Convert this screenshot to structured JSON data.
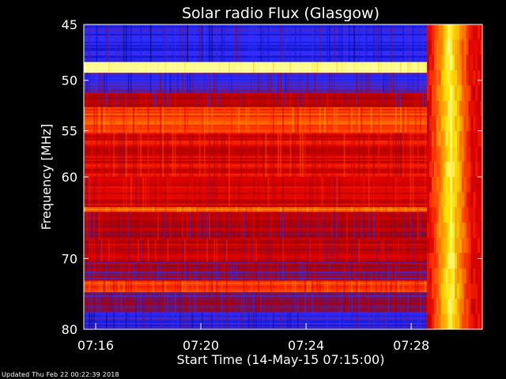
{
  "chart_data": {
    "type": "heatmap",
    "title": "Solar radio Flux (Glasgow)",
    "xlabel": "Start Time (14-May-15 07:15:00)",
    "ylabel": "Frequency [MHz]",
    "x_unit": "minutes after 07:15",
    "xlim": [
      0.55,
      15.7
    ],
    "ylim": [
      80,
      45
    ],
    "y_scale": "log",
    "x_ticks": [
      {
        "label": "07:16",
        "value": 1
      },
      {
        "label": "07:20",
        "value": 5
      },
      {
        "label": "07:24",
        "value": 9
      },
      {
        "label": "07:28",
        "value": 13
      }
    ],
    "y_ticks": [
      {
        "label": "45",
        "value": 45
      },
      {
        "label": "50",
        "value": 50
      },
      {
        "label": "55",
        "value": 55
      },
      {
        "label": "60",
        "value": 60
      },
      {
        "label": "70",
        "value": 70
      },
      {
        "label": "80",
        "value": 80
      }
    ],
    "colormap": [
      "#000000",
      "#1010c8",
      "#3030ff",
      "#a00000",
      "#e00000",
      "#ff4000",
      "#ff9000",
      "#ffe000",
      "#ffffa0"
    ],
    "bands": [
      {
        "f_start": 45,
        "f_end": 48.3,
        "level": 0.2
      },
      {
        "f_start": 48.3,
        "f_end": 49.3,
        "level": 0.98
      },
      {
        "f_start": 49.3,
        "f_end": 51.2,
        "level": 0.25
      },
      {
        "f_start": 51.2,
        "f_end": 52.6,
        "level": 0.38
      },
      {
        "f_start": 52.6,
        "f_end": 55.2,
        "level": 0.62
      },
      {
        "f_start": 55.2,
        "f_end": 60,
        "level": 0.5
      },
      {
        "f_start": 60,
        "f_end": 63.5,
        "level": 0.47
      },
      {
        "f_start": 63.5,
        "f_end": 64.1,
        "level": 0.7
      },
      {
        "f_start": 64.1,
        "f_end": 67.5,
        "level": 0.4
      },
      {
        "f_start": 67.5,
        "f_end": 70.5,
        "level": 0.44
      },
      {
        "f_start": 70.5,
        "f_end": 73,
        "level": 0.36
      },
      {
        "f_start": 73,
        "f_end": 74.6,
        "level": 0.6
      },
      {
        "f_start": 74.6,
        "f_end": 77.5,
        "level": 0.32
      },
      {
        "f_start": 77.5,
        "f_end": 80,
        "level": 0.22
      }
    ],
    "burst": {
      "t_start": 13.6,
      "t_end": 15.7,
      "f_start": 45,
      "f_end": 80,
      "level": 0.9
    }
  },
  "footer": {
    "updated": "Updated Thu Feb 22 00:22:39 2018"
  }
}
